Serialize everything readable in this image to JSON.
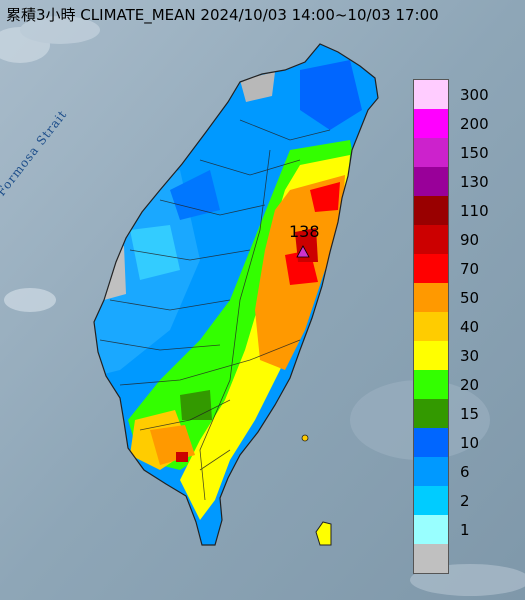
{
  "title": "累積3小時 CLIMATE_MEAN 2024/10/03 14:00~10/03 17:00",
  "strait_label": "Formosa Strait",
  "max_marker": {
    "value_label": "138",
    "color": "#cc33cc"
  },
  "legend": {
    "items": [
      {
        "label": "300",
        "color": "#ffccff"
      },
      {
        "label": "200",
        "color": "#ff00ff"
      },
      {
        "label": "150",
        "color": "#cc22cc"
      },
      {
        "label": "130",
        "color": "#990099"
      },
      {
        "label": "110",
        "color": "#990000"
      },
      {
        "label": "90",
        "color": "#cc0000"
      },
      {
        "label": "70",
        "color": "#ff0000"
      },
      {
        "label": "50",
        "color": "#ff9900"
      },
      {
        "label": "40",
        "color": "#ffcc00"
      },
      {
        "label": "30",
        "color": "#ffff00"
      },
      {
        "label": "20",
        "color": "#33ff00"
      },
      {
        "label": "15",
        "color": "#339900"
      },
      {
        "label": "10",
        "color": "#0066ff"
      },
      {
        "label": "6",
        "color": "#0099ff"
      },
      {
        "label": "2",
        "color": "#00ccff"
      },
      {
        "label": "1",
        "color": "#99ffff"
      },
      {
        "label": "",
        "color": "#c0c0c0"
      }
    ]
  }
}
